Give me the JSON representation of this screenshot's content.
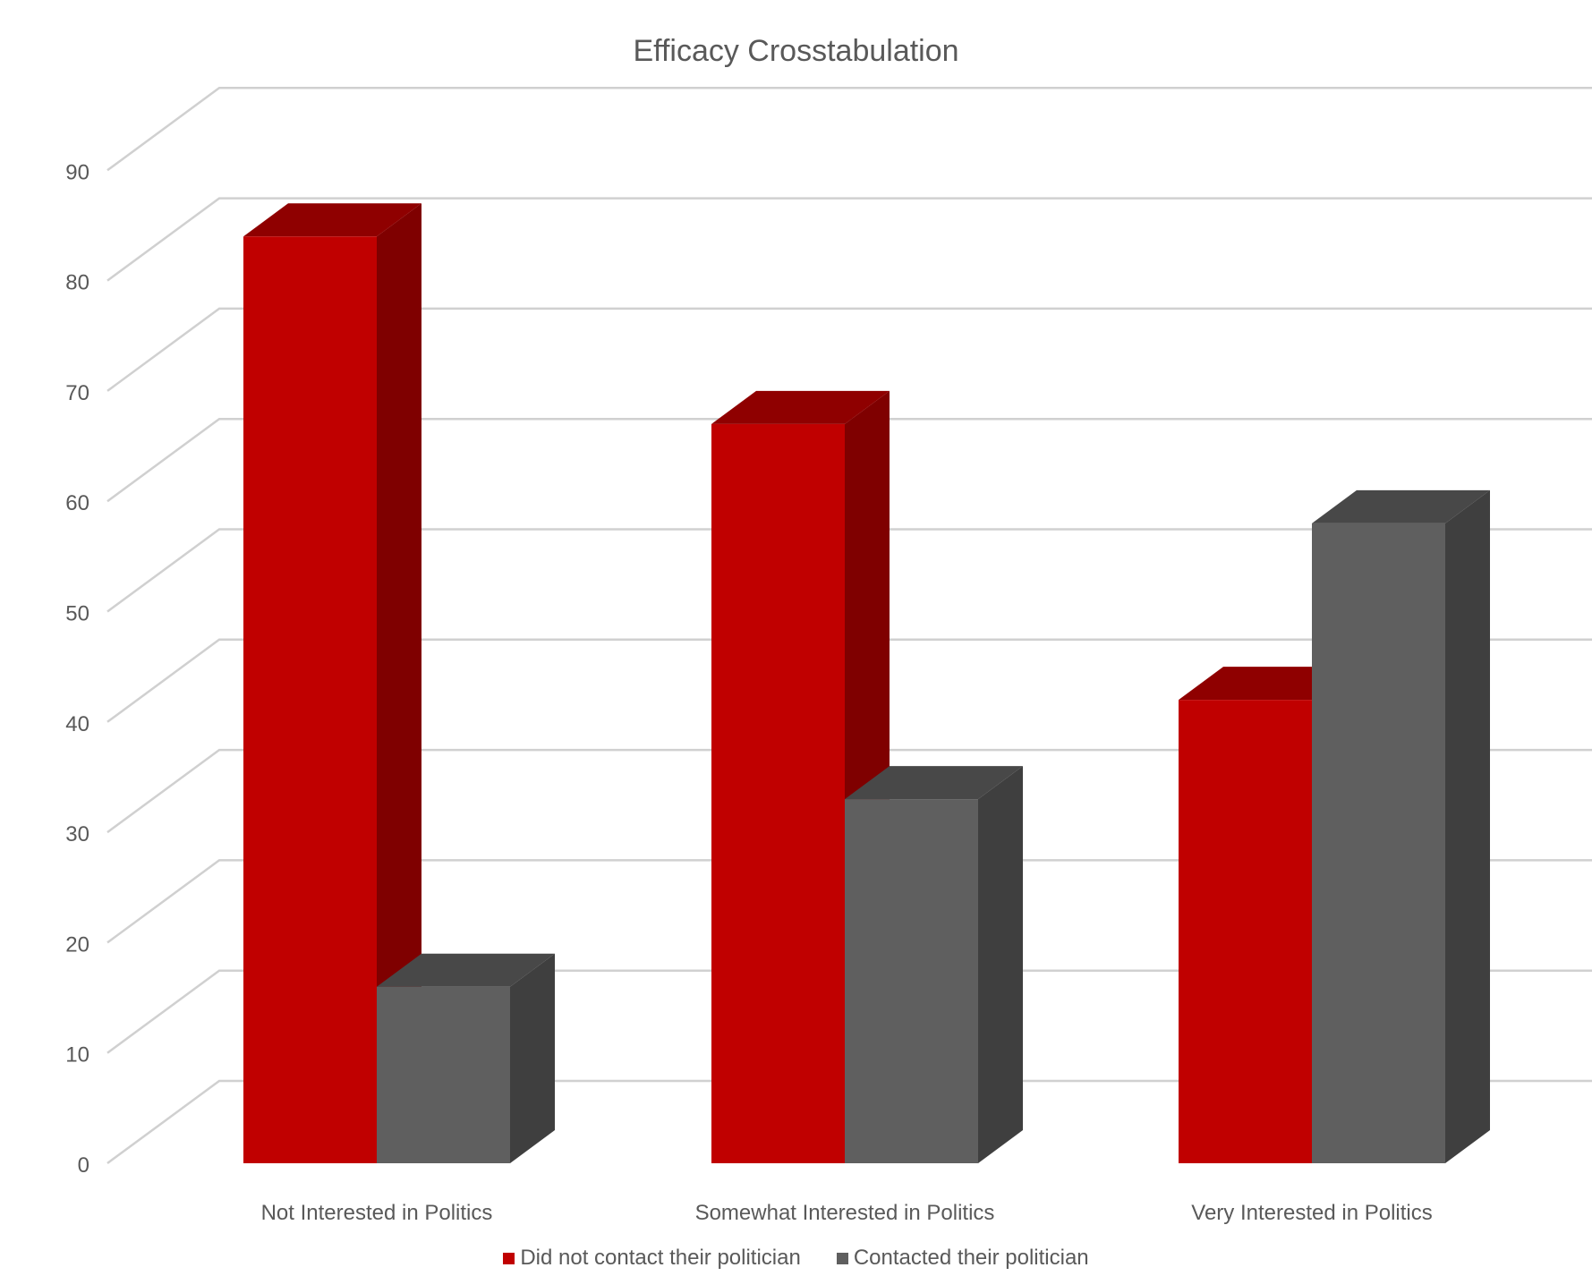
{
  "chart_data": {
    "type": "bar",
    "subtype": "3d-clustered-column",
    "title": "Efficacy Crosstabulation",
    "xlabel": "",
    "ylabel": "",
    "categories": [
      "Not Interested in Politics",
      "Somewhat Interested in Politics",
      "Very Interested in Politics"
    ],
    "series": [
      {
        "name": "Did not contact their politician",
        "values": [
          84,
          67,
          42
        ],
        "color": "#c00000",
        "side_color": "#7f0000",
        "top_color": "#8f0000"
      },
      {
        "name": "Contacted their politician",
        "values": [
          16,
          33,
          58
        ],
        "color": "#5f5f5f",
        "side_color": "#3f3f3f",
        "top_color": "#484848"
      }
    ],
    "ylim": [
      0,
      90
    ],
    "yticks": [
      "0",
      "10",
      "20",
      "30",
      "40",
      "50",
      "60",
      "70",
      "80",
      "90"
    ],
    "grid": true,
    "legend_position": "bottom"
  }
}
